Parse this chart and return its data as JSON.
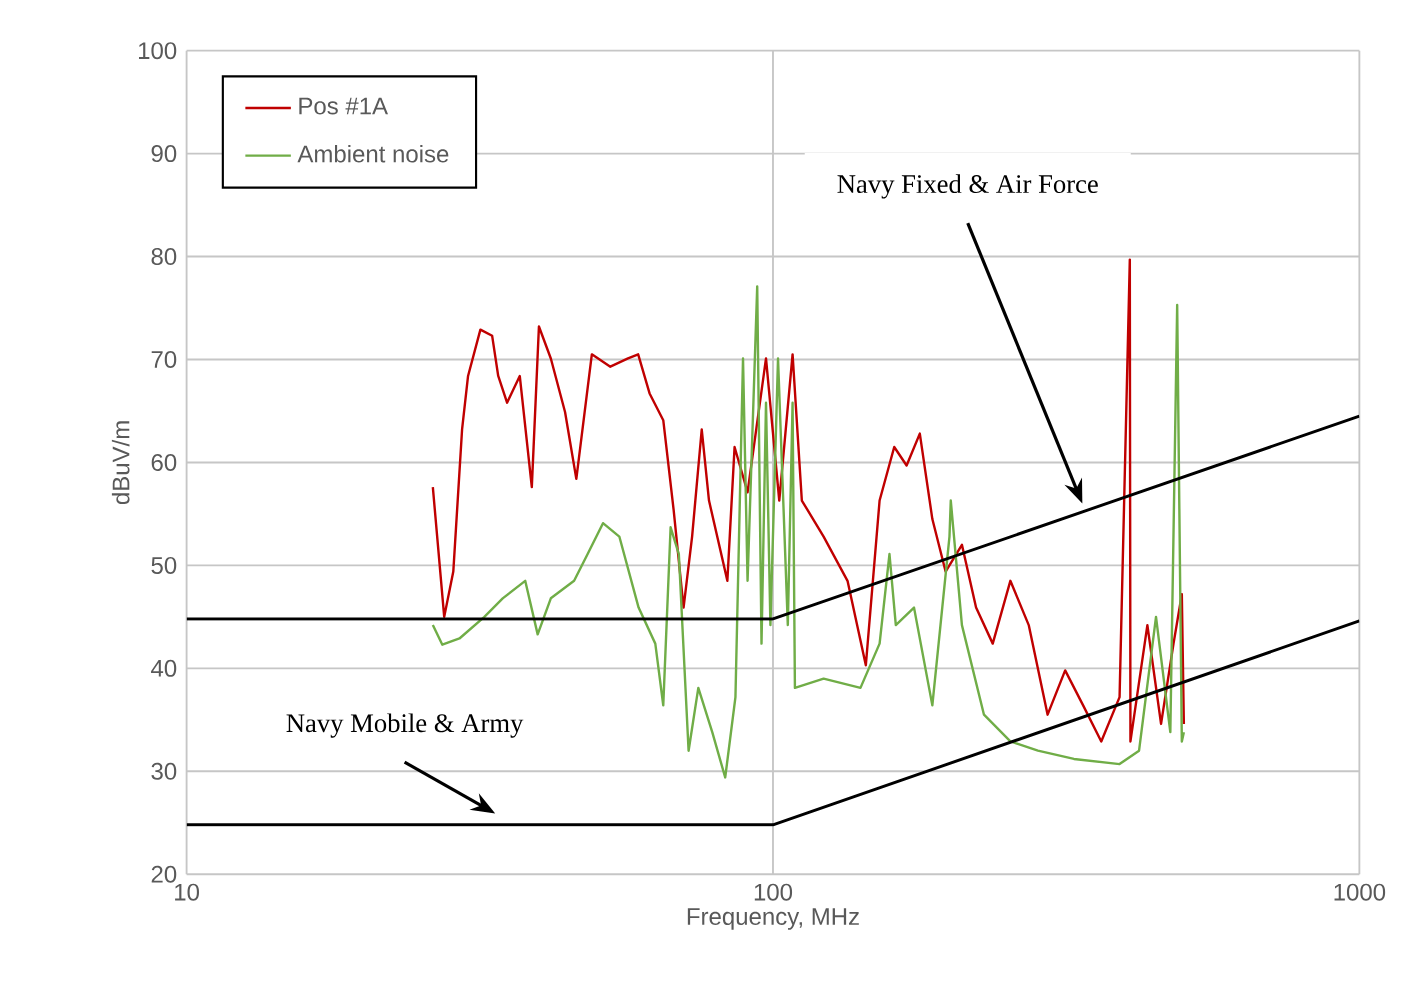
{
  "chart_data": {
    "type": "line",
    "xlabel": "Frequency, MHz",
    "ylabel": "dBuV/m",
    "log": "x",
    "xlim": [
      10,
      1000
    ],
    "ylim": [
      20,
      100
    ],
    "xticks": [
      10,
      100,
      {
        "value": 1000,
        "label": "1000"
      }
    ],
    "yticks": [
      20,
      30,
      40,
      50,
      60,
      70,
      80,
      90,
      100
    ],
    "grid": true,
    "legend": "top left",
    "marker": "none",
    "series": [
      {
        "name": "Pos #1A",
        "color": "#c00000",
        "x": [
          26.3,
          27.5,
          28.5,
          29.5,
          30.2,
          31.7,
          33.2,
          34.0,
          35.2,
          37.0,
          38.8,
          39.9,
          41.8,
          44.2,
          46.2,
          49.1,
          52.8,
          56.6,
          58.9,
          61.6,
          65.0,
          67.7,
          70.4,
          72.8,
          75.6,
          77.8,
          83.6,
          86.0,
          90.5,
          97.3,
          102.5,
          108,
          112,
          122,
          134,
          144,
          152,
          161,
          169,
          178,
          187,
          197,
          210,
          222,
          237,
          254,
          273,
          294,
          315,
          338,
          363,
          390,
          406,
          407,
          435,
          459,
          482,
          498,
          502
        ],
        "values": [
          57.6,
          45.0,
          49.4,
          63.2,
          68.4,
          72.9,
          72.3,
          68.4,
          65.8,
          68.4,
          57.6,
          73.2,
          70.1,
          64.9,
          58.4,
          70.5,
          69.3,
          70.1,
          70.5,
          66.7,
          64.1,
          55.4,
          45.9,
          52.8,
          63.2,
          56.3,
          48.5,
          61.5,
          57.1,
          70.1,
          56.3,
          70.5,
          56.3,
          52.8,
          48.5,
          40.3,
          56.3,
          61.5,
          59.7,
          62.8,
          54.5,
          49.4,
          52.0,
          45.9,
          42.4,
          48.5,
          44.2,
          35.5,
          39.8,
          36.4,
          32.9,
          37.2,
          79.7,
          32.9,
          44.2,
          34.6,
          42.4,
          47.2,
          34.6
        ]
      },
      {
        "name": "Ambient noise",
        "color": "#70ad47",
        "x": [
          26.3,
          27.3,
          29.2,
          32.2,
          34.6,
          37.8,
          39.7,
          41.8,
          45.8,
          48.3,
          51.3,
          54.7,
          59.0,
          63.0,
          65.0,
          66.9,
          69.1,
          71.8,
          74.6,
          78.8,
          82.9,
          86.3,
          88.9,
          90.5,
          94.0,
          95.6,
          97.3,
          99,
          102,
          106,
          108,
          109,
          122,
          141,
          152,
          158,
          162,
          174,
          187,
          200,
          201,
          210,
          229,
          254,
          283,
          326,
          390,
          421,
          450,
          476,
          489,
          498,
          502
        ],
        "values": [
          44.2,
          42.3,
          42.9,
          45.0,
          46.8,
          48.5,
          43.3,
          46.8,
          48.5,
          51.1,
          54.1,
          52.8,
          45.9,
          42.4,
          36.4,
          53.7,
          51.1,
          32.0,
          38.1,
          33.8,
          29.4,
          37.2,
          70.1,
          48.5,
          77.1,
          42.4,
          65.8,
          44.2,
          70.1,
          44.2,
          65.8,
          38.1,
          39.0,
          38.1,
          42.4,
          51.1,
          44.2,
          45.9,
          36.4,
          52.8,
          56.3,
          44.2,
          35.5,
          32.9,
          32.0,
          31.2,
          30.7,
          32.0,
          45.0,
          33.8,
          75.3,
          32.9,
          33.8
        ]
      },
      {
        "color": "#000000",
        "x": [
          10,
          100,
          1000
        ],
        "values": [
          44.8,
          44.8,
          64.5
        ]
      },
      {
        "color": "#000000",
        "x": [
          10,
          100,
          1000
        ],
        "values": [
          24.8,
          24.8,
          44.6
        ]
      }
    ],
    "annotations": [
      {
        "text": "Navy Fixed & Air Force",
        "x": 337,
        "y": 56
      },
      {
        "text": "Navy Mobile & Army",
        "x": 33.6,
        "y": 25.9
      }
    ]
  }
}
